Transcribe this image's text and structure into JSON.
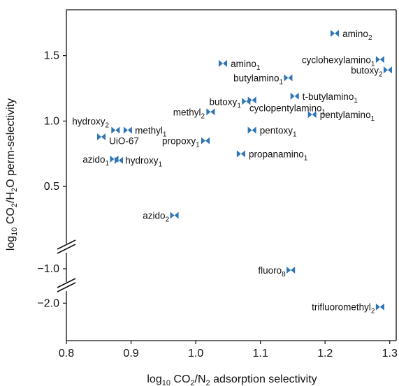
{
  "chart_data": {
    "type": "scatter",
    "title": "",
    "xlabel": {
      "pre": "log",
      "sub": "10",
      "mid": " CO",
      "sub2": "2",
      "post": "/N",
      "sub3": "2",
      "tail": " adsorption selectivity"
    },
    "ylabel": {
      "pre": "log",
      "sub": "10",
      "mid": " CO",
      "sub2": "2",
      "post": "/H",
      "sub3": "2",
      "tail": "O perm-selectivity"
    },
    "xlim": [
      0.8,
      1.31
    ],
    "x_ticks": [
      "0.8",
      "0.9",
      "1.0",
      "1.1",
      "1.2",
      "1.3"
    ],
    "y_axis_broken": true,
    "y_segments": [
      {
        "ylim": [
          0.0,
          1.85
        ],
        "ticks": [
          "0.5",
          "1.0",
          "1.5"
        ]
      },
      {
        "ylim": [
          -1.35,
          -0.7
        ],
        "ticks": [
          "-1.0"
        ]
      },
      {
        "ylim": [
          -2.6,
          -1.75
        ],
        "ticks": [
          "-2.0"
        ]
      }
    ],
    "marker_color": "#2f74b5",
    "marker": "bowtie",
    "points": [
      {
        "name": "amino",
        "sub": "2",
        "x": 1.215,
        "y": 1.67,
        "lx": 1.227,
        "anchor": "start"
      },
      {
        "name": "cyclohexylamino",
        "sub": "1",
        "x": 1.285,
        "y": 1.47,
        "lx": 1.277,
        "anchor": "end"
      },
      {
        "name": "butoxy",
        "sub": "2",
        "x": 1.297,
        "y": 1.39,
        "lx": 1.289,
        "anchor": "end"
      },
      {
        "name": "amino",
        "sub": "1",
        "x": 1.042,
        "y": 1.44,
        "lx": 1.054,
        "anchor": "start"
      },
      {
        "name": "butylamino",
        "sub": "1",
        "x": 1.143,
        "y": 1.33,
        "lx": 1.135,
        "anchor": "end"
      },
      {
        "name": "t-butylamino",
        "sub": "1",
        "x": 1.153,
        "y": 1.19,
        "lx": 1.165,
        "anchor": "start"
      },
      {
        "name": "butoxy",
        "sub": "1",
        "x": 1.078,
        "y": 1.15,
        "lx": 1.07,
        "anchor": "end"
      },
      {
        "name": "cyclopentylamino",
        "sub": "1",
        "x": 1.087,
        "y": 1.16,
        "lx": 1.083,
        "anchor": "start",
        "ly": 1.1
      },
      {
        "name": "methyl",
        "sub": "2",
        "x": 1.023,
        "y": 1.07,
        "lx": 1.014,
        "anchor": "end"
      },
      {
        "name": "pentylamino",
        "sub": "1",
        "x": 1.18,
        "y": 1.05,
        "lx": 1.192,
        "anchor": "start"
      },
      {
        "name": "hydroxy",
        "sub": "2",
        "x": 0.876,
        "y": 0.93,
        "lx": 0.866,
        "anchor": "end",
        "ly": 1.0
      },
      {
        "name": "methyl",
        "sub": "1",
        "x": 0.895,
        "y": 0.93,
        "lx": 0.906,
        "anchor": "start"
      },
      {
        "name": "pentoxy",
        "sub": "1",
        "x": 1.087,
        "y": 0.93,
        "lx": 1.099,
        "anchor": "start"
      },
      {
        "name": "UiO-67",
        "sub": "",
        "x": 0.854,
        "y": 0.88,
        "lx": 0.866,
        "anchor": "start",
        "ly": 0.85
      },
      {
        "name": "propoxy",
        "sub": "1",
        "x": 1.015,
        "y": 0.85,
        "lx": 1.006,
        "anchor": "end"
      },
      {
        "name": "propanamino",
        "sub": "1",
        "x": 1.07,
        "y": 0.75,
        "lx": 1.082,
        "anchor": "start"
      },
      {
        "name": "azido",
        "sub": "1",
        "x": 0.874,
        "y": 0.71,
        "lx": 0.866,
        "anchor": "end"
      },
      {
        "name": "hydroxy",
        "sub": "1",
        "x": 0.881,
        "y": 0.7,
        "lx": 0.891,
        "anchor": "start"
      },
      {
        "name": "azido",
        "sub": "2",
        "x": 0.967,
        "y": 0.28,
        "lx": 0.959,
        "anchor": "end"
      },
      {
        "name": "fluoro",
        "sub": "8",
        "x": 1.147,
        "y": -1.02,
        "lx": 1.139,
        "anchor": "end"
      },
      {
        "name": "trifluoromethyl",
        "sub": "2",
        "x": 1.285,
        "y": -2.06,
        "lx": 1.277,
        "anchor": "end"
      }
    ]
  }
}
